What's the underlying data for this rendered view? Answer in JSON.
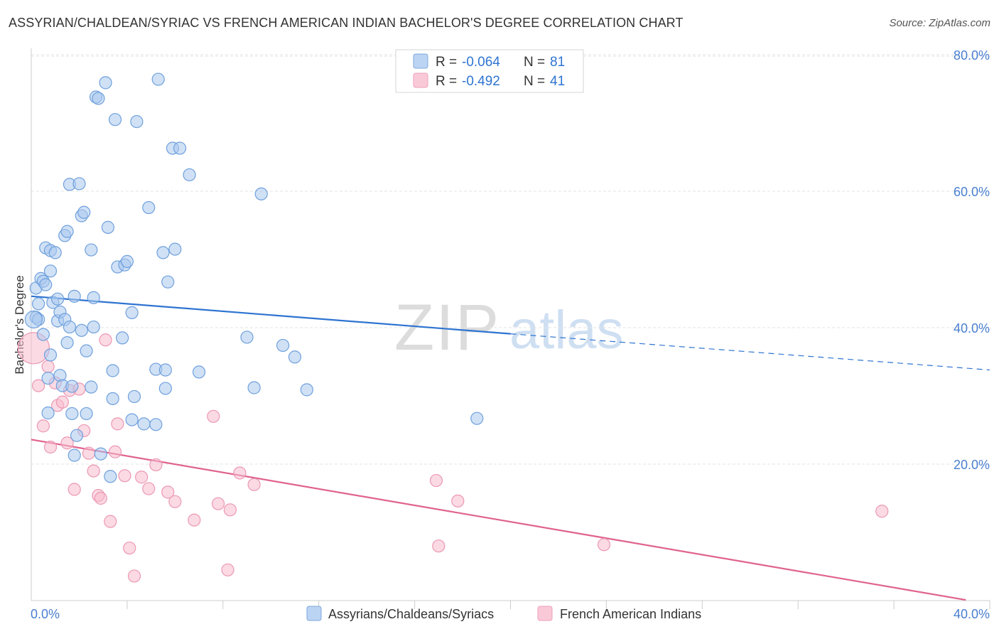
{
  "header": {
    "title": "ASSYRIAN/CHALDEAN/SYRIAC VS FRENCH AMERICAN INDIAN BACHELOR'S DEGREE CORRELATION CHART",
    "source": "Source: ZipAtlas.com"
  },
  "watermark": {
    "zip": "ZIP",
    "atlas": "atlas"
  },
  "colors": {
    "blue_fill": "#a9c8ef",
    "blue_stroke": "#6fa0dc",
    "blue_line": "#2e74d1",
    "pink_fill": "#f7bccd",
    "pink_stroke": "#ec97b3",
    "pink_line": "#e0628e",
    "tick_label": "#4a7fd0",
    "grid": "#e3e3e3"
  },
  "legend": {
    "rows": [
      {
        "r_label": "R =",
        "r_value": "-0.064",
        "n_label": "N =",
        "n_value": "81"
      },
      {
        "r_label": "R =",
        "r_value": "-0.492",
        "n_label": "N =",
        "n_value": "41"
      }
    ]
  },
  "chart_data": {
    "type": "scatter",
    "title": "ASSYRIAN/CHALDEAN/SYRIAC VS FRENCH AMERICAN INDIAN BACHELOR'S DEGREE CORRELATION CHART",
    "xlabel": "",
    "ylabel": "Bachelor's Degree",
    "xlim": [
      0,
      40
    ],
    "ylim": [
      0,
      80
    ],
    "x_tick_labels": {
      "min": "0.0%",
      "max": "40.0%"
    },
    "y_ticks": [
      20,
      40,
      60,
      80
    ],
    "y_tick_labels": [
      "20.0%",
      "40.0%",
      "60.0%",
      "80.0%"
    ],
    "grid": true,
    "series": [
      {
        "name": "Assyrians/Chaldeans/Syriacs",
        "r": -0.064,
        "n": 81,
        "trend": {
          "x0": 0,
          "y0": 44.6,
          "x1": 20,
          "y1": 39.1,
          "dash_x1": 40,
          "dash_y1": 33.8
        },
        "points": [
          [
            0.2,
            41.5
          ],
          [
            0.2,
            45.8
          ],
          [
            0.3,
            43.5
          ],
          [
            0.3,
            41.2
          ],
          [
            0.4,
            47.2
          ],
          [
            0.5,
            39.0
          ],
          [
            0.5,
            46.8
          ],
          [
            0.6,
            46.3
          ],
          [
            0.6,
            51.7
          ],
          [
            0.7,
            27.5
          ],
          [
            0.7,
            32.6
          ],
          [
            0.8,
            36.0
          ],
          [
            0.8,
            51.3
          ],
          [
            0.8,
            48.3
          ],
          [
            0.9,
            43.7
          ],
          [
            1.0,
            51.0
          ],
          [
            1.1,
            41.0
          ],
          [
            1.2,
            42.3
          ],
          [
            1.2,
            33.0
          ],
          [
            1.3,
            31.5
          ],
          [
            1.4,
            41.2
          ],
          [
            1.4,
            53.5
          ],
          [
            1.5,
            54.1
          ],
          [
            1.5,
            37.8
          ],
          [
            1.6,
            40.1
          ],
          [
            1.6,
            61.0
          ],
          [
            1.7,
            31.4
          ],
          [
            1.7,
            27.4
          ],
          [
            1.8,
            21.3
          ],
          [
            1.8,
            44.6
          ],
          [
            1.9,
            24.2
          ],
          [
            2.0,
            61.1
          ],
          [
            2.1,
            39.6
          ],
          [
            2.1,
            56.4
          ],
          [
            2.2,
            56.9
          ],
          [
            2.3,
            36.6
          ],
          [
            2.3,
            27.4
          ],
          [
            2.5,
            31.3
          ],
          [
            2.5,
            51.4
          ],
          [
            2.6,
            40.1
          ],
          [
            2.6,
            44.4
          ],
          [
            2.7,
            73.8
          ],
          [
            2.8,
            73.6
          ],
          [
            2.9,
            21.5
          ],
          [
            3.1,
            75.9
          ],
          [
            3.2,
            54.7
          ],
          [
            3.3,
            18.2
          ],
          [
            3.4,
            33.7
          ],
          [
            3.4,
            29.6
          ],
          [
            3.5,
            70.5
          ],
          [
            3.6,
            48.9
          ],
          [
            3.8,
            38.5
          ],
          [
            3.9,
            49.2
          ],
          [
            4.0,
            49.7
          ],
          [
            4.2,
            42.2
          ],
          [
            4.2,
            26.5
          ],
          [
            4.3,
            29.9
          ],
          [
            4.4,
            70.2
          ],
          [
            4.7,
            25.9
          ],
          [
            4.9,
            57.6
          ],
          [
            5.2,
            25.8
          ],
          [
            5.2,
            33.9
          ],
          [
            5.3,
            76.4
          ],
          [
            5.5,
            51.0
          ],
          [
            5.6,
            31.1
          ],
          [
            5.6,
            33.8
          ],
          [
            5.7,
            46.7
          ],
          [
            5.9,
            66.3
          ],
          [
            6.0,
            51.5
          ],
          [
            6.2,
            66.3
          ],
          [
            6.6,
            62.4
          ],
          [
            7.0,
            33.5
          ],
          [
            9.0,
            38.6
          ],
          [
            9.3,
            31.2
          ],
          [
            9.6,
            59.6
          ],
          [
            10.5,
            37.4
          ],
          [
            11.0,
            35.7
          ],
          [
            11.5,
            30.9
          ],
          [
            18.6,
            26.7
          ],
          [
            0.1,
            41.2
          ],
          [
            1.1,
            44.2
          ]
        ]
      },
      {
        "name": "French American Indians",
        "r": -0.492,
        "n": 41,
        "trend": {
          "x0": 0,
          "y0": 23.6,
          "x1": 39,
          "y1": 0.1
        },
        "points": [
          [
            0.1,
            37.0
          ],
          [
            0.3,
            31.5
          ],
          [
            0.5,
            25.6
          ],
          [
            0.7,
            34.3
          ],
          [
            0.8,
            22.5
          ],
          [
            1.0,
            31.9
          ],
          [
            1.1,
            28.6
          ],
          [
            1.3,
            29.1
          ],
          [
            1.5,
            23.1
          ],
          [
            1.6,
            30.8
          ],
          [
            1.8,
            16.3
          ],
          [
            2.0,
            31.0
          ],
          [
            2.2,
            24.9
          ],
          [
            2.4,
            21.6
          ],
          [
            2.6,
            19.0
          ],
          [
            2.8,
            15.4
          ],
          [
            2.9,
            15.0
          ],
          [
            3.1,
            38.2
          ],
          [
            3.3,
            11.6
          ],
          [
            3.5,
            21.8
          ],
          [
            3.6,
            25.9
          ],
          [
            3.9,
            18.3
          ],
          [
            4.1,
            7.7
          ],
          [
            4.3,
            3.6
          ],
          [
            4.6,
            18.1
          ],
          [
            4.9,
            16.4
          ],
          [
            5.2,
            19.9
          ],
          [
            5.7,
            15.9
          ],
          [
            6.0,
            14.5
          ],
          [
            6.8,
            11.8
          ],
          [
            7.6,
            27.0
          ],
          [
            7.8,
            14.2
          ],
          [
            8.2,
            4.5
          ],
          [
            8.3,
            13.3
          ],
          [
            8.7,
            18.7
          ],
          [
            9.3,
            17.0
          ],
          [
            16.9,
            17.6
          ],
          [
            17.0,
            8.0
          ],
          [
            17.8,
            14.6
          ],
          [
            23.9,
            8.2
          ],
          [
            35.5,
            13.1
          ]
        ]
      }
    ]
  },
  "bottom_legend": [
    {
      "label": "Assyrians/Chaldeans/Syriacs"
    },
    {
      "label": "French American Indians"
    }
  ]
}
